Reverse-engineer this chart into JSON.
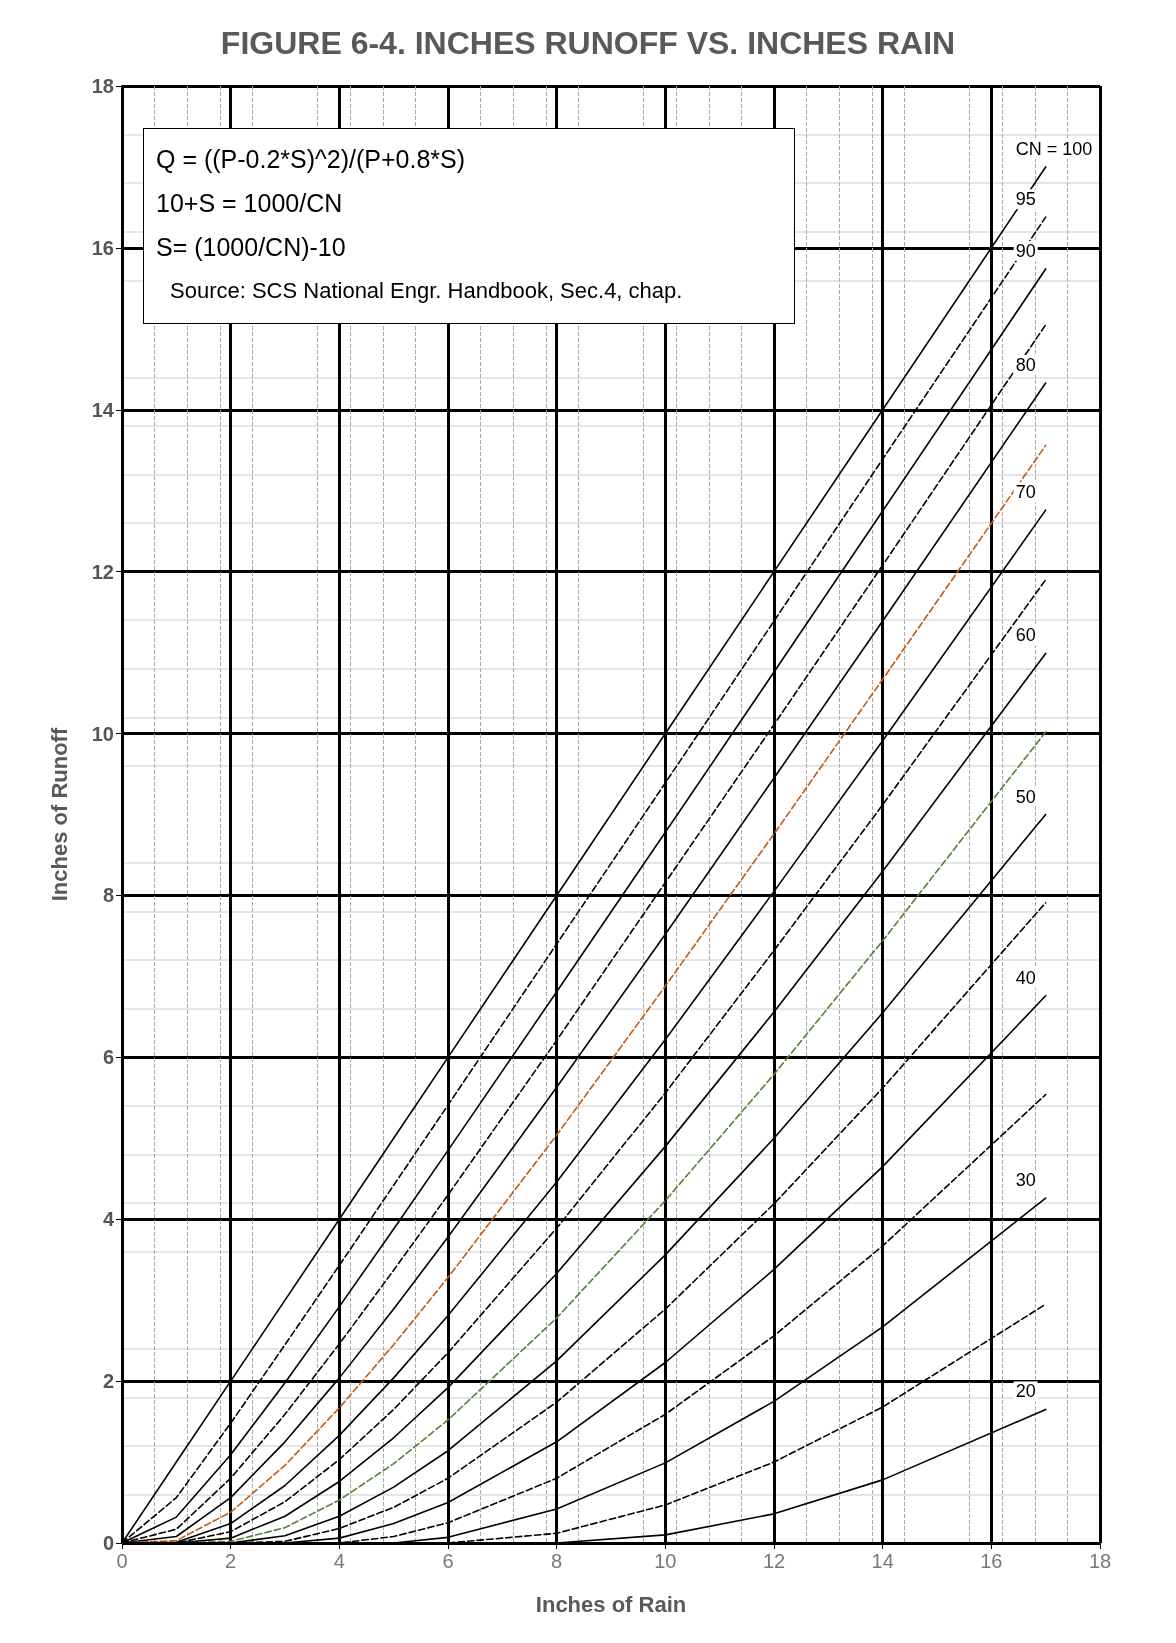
{
  "chart_data": {
    "type": "line",
    "title": "FIGURE 6-4. INCHES RUNOFF VS. INCHES RAIN",
    "xlabel": "Inches of Rain",
    "ylabel": "Inches of Runoff",
    "annotations": [
      "Q = ((P-0.2*S)^2)/(P+0.8*S)",
      "10+S = 1000/CN",
      "S= (1000/CN)-10",
      "Source: SCS National Engr. Handbook, Sec.4, chap."
    ],
    "x": [
      0,
      1,
      2,
      3,
      4,
      5,
      6,
      8,
      10,
      12,
      14,
      17
    ],
    "xlim": [
      0,
      18
    ],
    "xticks": [
      0,
      2,
      4,
      6,
      8,
      10,
      12,
      14,
      16,
      18
    ],
    "ylim": [
      0,
      18
    ],
    "yticks": [
      0,
      2,
      4,
      6,
      8,
      10,
      12,
      14,
      16,
      18
    ],
    "grid": true,
    "legend": false,
    "marker": "none",
    "series": [
      {
        "name": "CN = 100",
        "color": "#000000",
        "line_style": "solid",
        "values": [
          0,
          1,
          2,
          3,
          4,
          5,
          6,
          8,
          10,
          12,
          14,
          17
        ]
      },
      {
        "name": "95",
        "color": "#000000",
        "line_style": "dashed",
        "values": [
          0,
          0.56,
          1.48,
          2.45,
          3.43,
          4.42,
          5.41,
          7.4,
          9.39,
          11.39,
          13.39,
          16.38
        ]
      },
      {
        "name": "90",
        "color": "#000000",
        "line_style": "solid",
        "values": [
          0,
          0.32,
          1.09,
          1.98,
          2.92,
          3.88,
          4.85,
          6.81,
          8.78,
          10.76,
          12.75,
          15.74
        ]
      },
      {
        "color": "#000000",
        "line_style": "dashed",
        "values": [
          0,
          0.17,
          0.8,
          1.59,
          2.46,
          3.37,
          4.3,
          6.21,
          8.16,
          10.11,
          12.08,
          15.05
        ]
      },
      {
        "name": "80",
        "color": "#000000",
        "line_style": "solid",
        "values": [
          0,
          0.08,
          0.56,
          1.25,
          2.04,
          2.89,
          3.78,
          5.63,
          7.52,
          9.45,
          11.39,
          14.33
        ]
      },
      {
        "color": "#c55a11",
        "line_style": "dashed",
        "values": [
          0,
          0.03,
          0.38,
          0.96,
          1.67,
          2.45,
          3.28,
          5.04,
          6.88,
          8.76,
          10.67,
          13.56
        ]
      },
      {
        "name": "70",
        "color": "#000000",
        "line_style": "solid",
        "values": [
          0,
          0.01,
          0.24,
          0.71,
          1.33,
          2.04,
          2.81,
          4.46,
          6.22,
          8.05,
          9.91,
          12.76
        ]
      },
      {
        "color": "#000000",
        "line_style": "dashed",
        "values": [
          0,
          0,
          0.14,
          0.51,
          1.03,
          1.65,
          2.35,
          3.89,
          5.56,
          7.32,
          9.12,
          11.9
        ]
      },
      {
        "name": "60",
        "color": "#000000",
        "line_style": "solid",
        "values": [
          0,
          0,
          0.06,
          0.33,
          0.76,
          1.3,
          1.92,
          3.33,
          4.9,
          6.56,
          8.3,
          10.99
        ]
      },
      {
        "color": "#548235",
        "line_style": "dashed",
        "values": [
          0,
          0,
          0.02,
          0.19,
          0.53,
          0.98,
          1.52,
          2.78,
          4.23,
          5.79,
          7.44,
          10.02
        ]
      },
      {
        "name": "50",
        "color": "#000000",
        "line_style": "solid",
        "values": [
          0,
          0,
          0,
          0.09,
          0.33,
          0.69,
          1.14,
          2.25,
          3.56,
          5,
          6.55,
          9
        ]
      },
      {
        "color": "#000000",
        "line_style": "dashed",
        "values": [
          0,
          0,
          0,
          0.02,
          0.18,
          0.44,
          0.8,
          1.74,
          2.89,
          4.19,
          5.62,
          7.91
        ]
      },
      {
        "name": "40",
        "color": "#000000",
        "line_style": "solid",
        "values": [
          0,
          0,
          0,
          0,
          0.06,
          0.24,
          0.5,
          1.25,
          2.23,
          3.38,
          4.65,
          6.76
        ]
      },
      {
        "color": "#000000",
        "line_style": "dashed",
        "values": [
          0,
          0,
          0,
          0,
          0,
          0.08,
          0.25,
          0.8,
          1.59,
          2.56,
          3.67,
          5.54
        ]
      },
      {
        "name": "30",
        "color": "#000000",
        "line_style": "solid",
        "values": [
          0,
          0,
          0,
          0,
          0,
          0,
          0.07,
          0.42,
          0.99,
          1.75,
          2.67,
          4.26
        ]
      },
      {
        "color": "#000000",
        "line_style": "dashed",
        "values": [
          0,
          0,
          0,
          0,
          0,
          0,
          0,
          0.12,
          0.47,
          1,
          1.68,
          2.95
        ]
      },
      {
        "name": "20",
        "color": "#000000",
        "line_style": "solid",
        "values": [
          0,
          0,
          0,
          0,
          0,
          0,
          0,
          0,
          0.1,
          0.36,
          0.78,
          1.65
        ]
      }
    ]
  }
}
